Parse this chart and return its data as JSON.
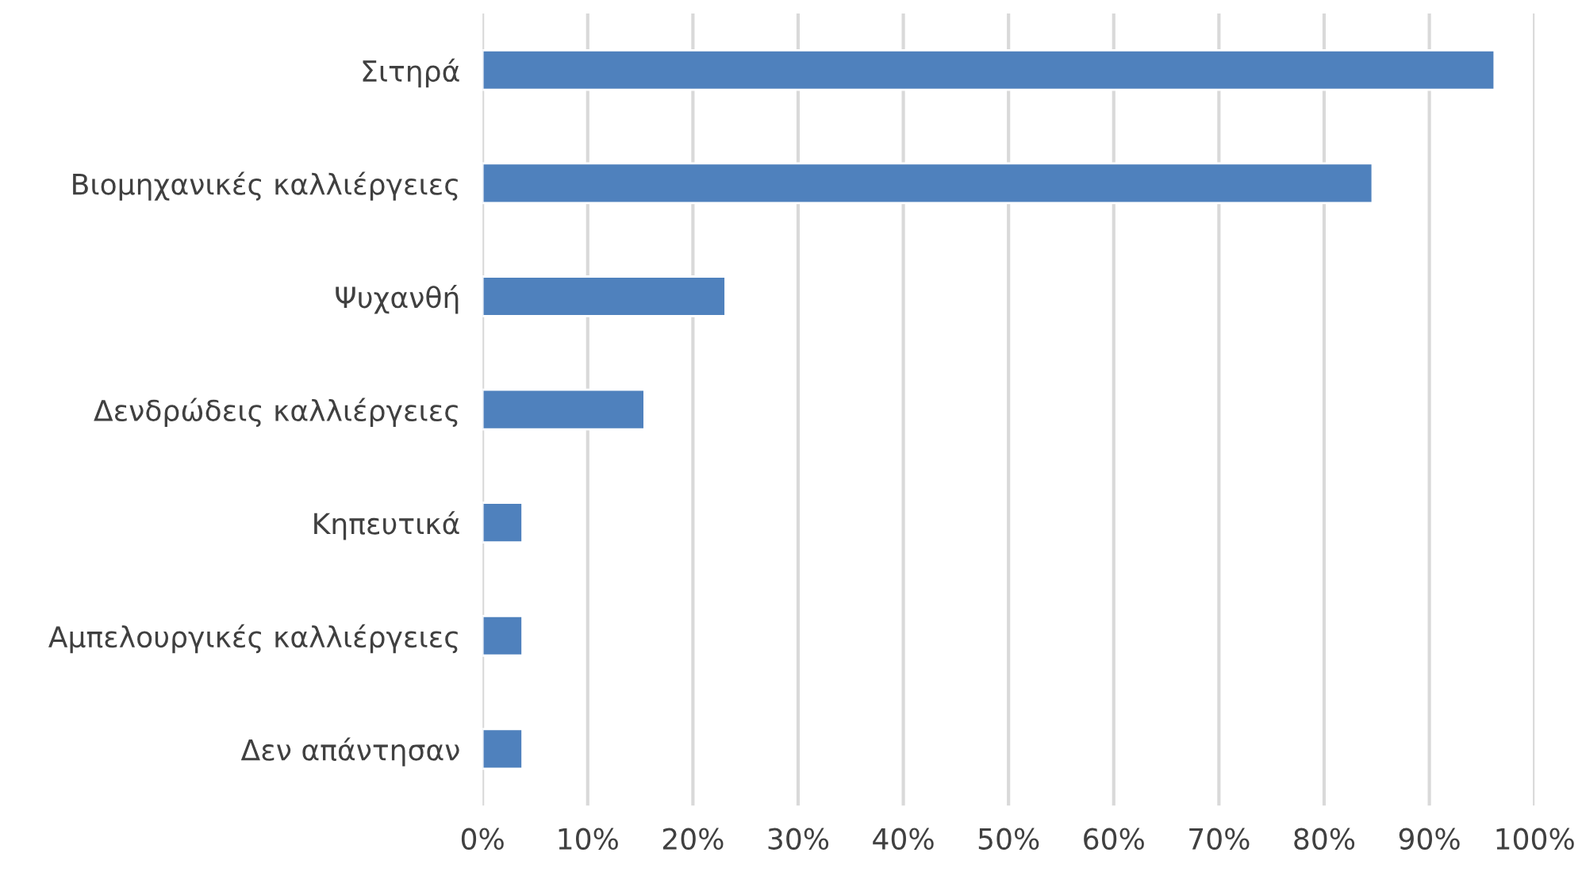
{
  "chart_data": {
    "type": "bar",
    "orientation": "horizontal",
    "categories": [
      "Σιτηρά",
      "Βιομηχανικές καλλιέργειες",
      "Ψυχανθή",
      "Δενδρώδεις καλλιέργειες",
      "Κηπευτικά",
      "Αμπελουργικές καλλιέργειες",
      "Δεν απάντησαν"
    ],
    "values": [
      96.2,
      84.6,
      23.1,
      15.4,
      3.8,
      3.8,
      3.8
    ],
    "color": "#4f81bd",
    "xlim": [
      0,
      100
    ],
    "xticks": [
      {
        "value": 0,
        "label": "0%"
      },
      {
        "value": 10,
        "label": "10%"
      },
      {
        "value": 20,
        "label": "20%"
      },
      {
        "value": 30,
        "label": "30%"
      },
      {
        "value": 40,
        "label": "40%"
      },
      {
        "value": 50,
        "label": "50%"
      },
      {
        "value": 60,
        "label": "60%"
      },
      {
        "value": 70,
        "label": "70%"
      },
      {
        "value": 80,
        "label": "80%"
      },
      {
        "value": 90,
        "label": "90%"
      },
      {
        "value": 100,
        "label": "100%"
      }
    ],
    "grid": "x"
  }
}
